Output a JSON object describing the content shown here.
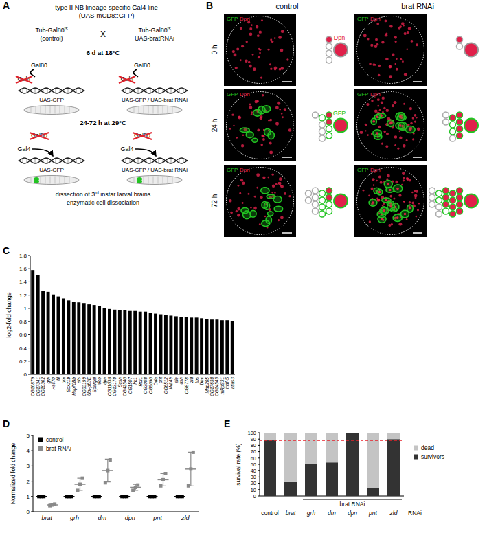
{
  "panel_labels": [
    "A",
    "B",
    "C",
    "D",
    "E"
  ],
  "diagram": {
    "title_lines": [
      "type II NB lineage specific Gal4 line",
      "(UAS-mCD8::GFP)"
    ],
    "cross": {
      "left": [
        {
          "text": "Tub-Gal80",
          "sup": "ts"
        },
        "(control)"
      ],
      "symbol": "X",
      "right": [
        {
          "text": "Tub-Gal80",
          "sup": "ts"
        },
        "UAS-bratRNAi"
      ]
    },
    "steps": [
      {
        "condition": "6 d at 18°C",
        "repressor": "Gal80",
        "activator": "Gal4",
        "targets": [
          "UAS-GFP",
          "UAS-GFP / UAS-brat RNAi"
        ]
      },
      {
        "condition": "24-72 h at 29°C",
        "repressor": "Gal80",
        "activator": "Gal4",
        "targets": [
          "UAS-GFP",
          "UAS-GFP / UAS-brat RNAi"
        ]
      }
    ],
    "footer": [
      {
        "text": "dissection of 3",
        "sup": "rd",
        "after": " instar larval brains"
      },
      "enzymatic cell dissociation"
    ]
  },
  "images": {
    "columns": [
      "control",
      "brat RNAi"
    ],
    "rows": [
      "0 h",
      "24 h",
      "72 h"
    ],
    "channels": [
      {
        "name": "GFP",
        "color": "#22c422"
      },
      {
        "name": "Dpn",
        "color": "#e0204a"
      }
    ]
  },
  "chart_data": [
    {
      "type": "bar",
      "categories": [
        "CG16879",
        "CG17341",
        "CG10362",
        "grh",
        "Hsc70",
        "tll",
        "dm",
        "Sox21b",
        "Hsp70Bb",
        "ets",
        "CG33199",
        "Ubi-p63E",
        "Spargel",
        "loco",
        "dpn",
        "CG11030",
        "CG13170",
        "Sesn",
        "CG42540",
        "CG1507",
        "Irk1",
        "Rpl1",
        "CG3008",
        "CG9090",
        "Oda",
        "pnt",
        "CG6512",
        "Mdr49",
        "sle",
        "asn",
        "CG8778",
        "zld",
        "tbs",
        "Dhc",
        "Map205",
        "CG17638",
        "CG14545",
        "mRpS31",
        "maf-S",
        "atlas3"
      ],
      "values": [
        1.58,
        1.5,
        1.26,
        1.25,
        1.21,
        1.18,
        1.15,
        1.12,
        1.1,
        1.09,
        1.08,
        1.06,
        1.05,
        1.03,
        1.0,
        0.99,
        0.98,
        0.97,
        0.97,
        0.96,
        0.96,
        0.95,
        0.95,
        0.93,
        0.92,
        0.91,
        0.9,
        0.89,
        0.88,
        0.87,
        0.87,
        0.86,
        0.86,
        0.85,
        0.84,
        0.83,
        0.83,
        0.82,
        0.82,
        0.81
      ],
      "color": "#000000",
      "ylim": [
        0,
        1.8
      ],
      "yticks": [
        0,
        0.2,
        0.4,
        0.6,
        0.8,
        1,
        1.2,
        1.4,
        1.6,
        1.8
      ],
      "y_label": "log2-fold change"
    },
    {
      "type": "dot",
      "categories": [
        "brat",
        "grh",
        "dm",
        "dpn",
        "pnt",
        "zld"
      ],
      "series": [
        {
          "name": "control",
          "color": "#000000",
          "marker": "square",
          "values": [
            1,
            1,
            1,
            1,
            1,
            1
          ],
          "errors": [
            0,
            0,
            0,
            0,
            0,
            0
          ],
          "points": [
            [
              1,
              1,
              1
            ],
            [
              1,
              1,
              1
            ],
            [
              1,
              1,
              1
            ],
            [
              1,
              1,
              1
            ],
            [
              1,
              1,
              1
            ],
            [
              1,
              1,
              1
            ]
          ]
        },
        {
          "name": "brat RNAi",
          "color": "#8a8a8a",
          "marker": "square",
          "values": [
            0.45,
            1.8,
            2.7,
            1.6,
            2.1,
            2.8
          ],
          "errors": [
            0.05,
            0.4,
            0.75,
            0.2,
            0.4,
            1.1
          ],
          "points": [
            [
              0.4,
              0.45,
              0.5
            ],
            [
              1.4,
              1.8,
              2.2
            ],
            [
              1.9,
              2.7,
              3.4
            ],
            [
              1.4,
              1.6,
              1.75
            ],
            [
              1.7,
              2.1,
              2.5
            ],
            [
              1.7,
              2.8,
              3.9
            ]
          ]
        }
      ],
      "ylim": [
        0,
        5
      ],
      "yticks": [
        0,
        1,
        2,
        3,
        4,
        5
      ],
      "y_label": "Normalized fold change",
      "legend": "top-left"
    },
    {
      "type": "bar",
      "stacked": true,
      "categories": [
        "control",
        "brat",
        "grh",
        "dm",
        "dpn",
        "pnt",
        "zld"
      ],
      "series": [
        {
          "name": "survivors",
          "color": "#333333",
          "values": [
            88,
            22,
            50,
            53,
            100,
            13,
            90
          ]
        },
        {
          "name": "dead",
          "color": "#c4c4c4",
          "values": [
            12,
            78,
            50,
            47,
            0,
            87,
            10
          ]
        }
      ],
      "ylim": [
        0,
        100
      ],
      "yticks": [
        0,
        10,
        20,
        30,
        40,
        50,
        60,
        70,
        80,
        90,
        100
      ],
      "y_label": "survival rate (%)",
      "x_label": "RNAi",
      "group_label": {
        "label": "brat RNAi",
        "from": "grh",
        "to": "zld"
      },
      "reference_line": {
        "value": 88,
        "color": "#e8202a",
        "line_style": "dashed"
      },
      "legend": "right"
    }
  ]
}
